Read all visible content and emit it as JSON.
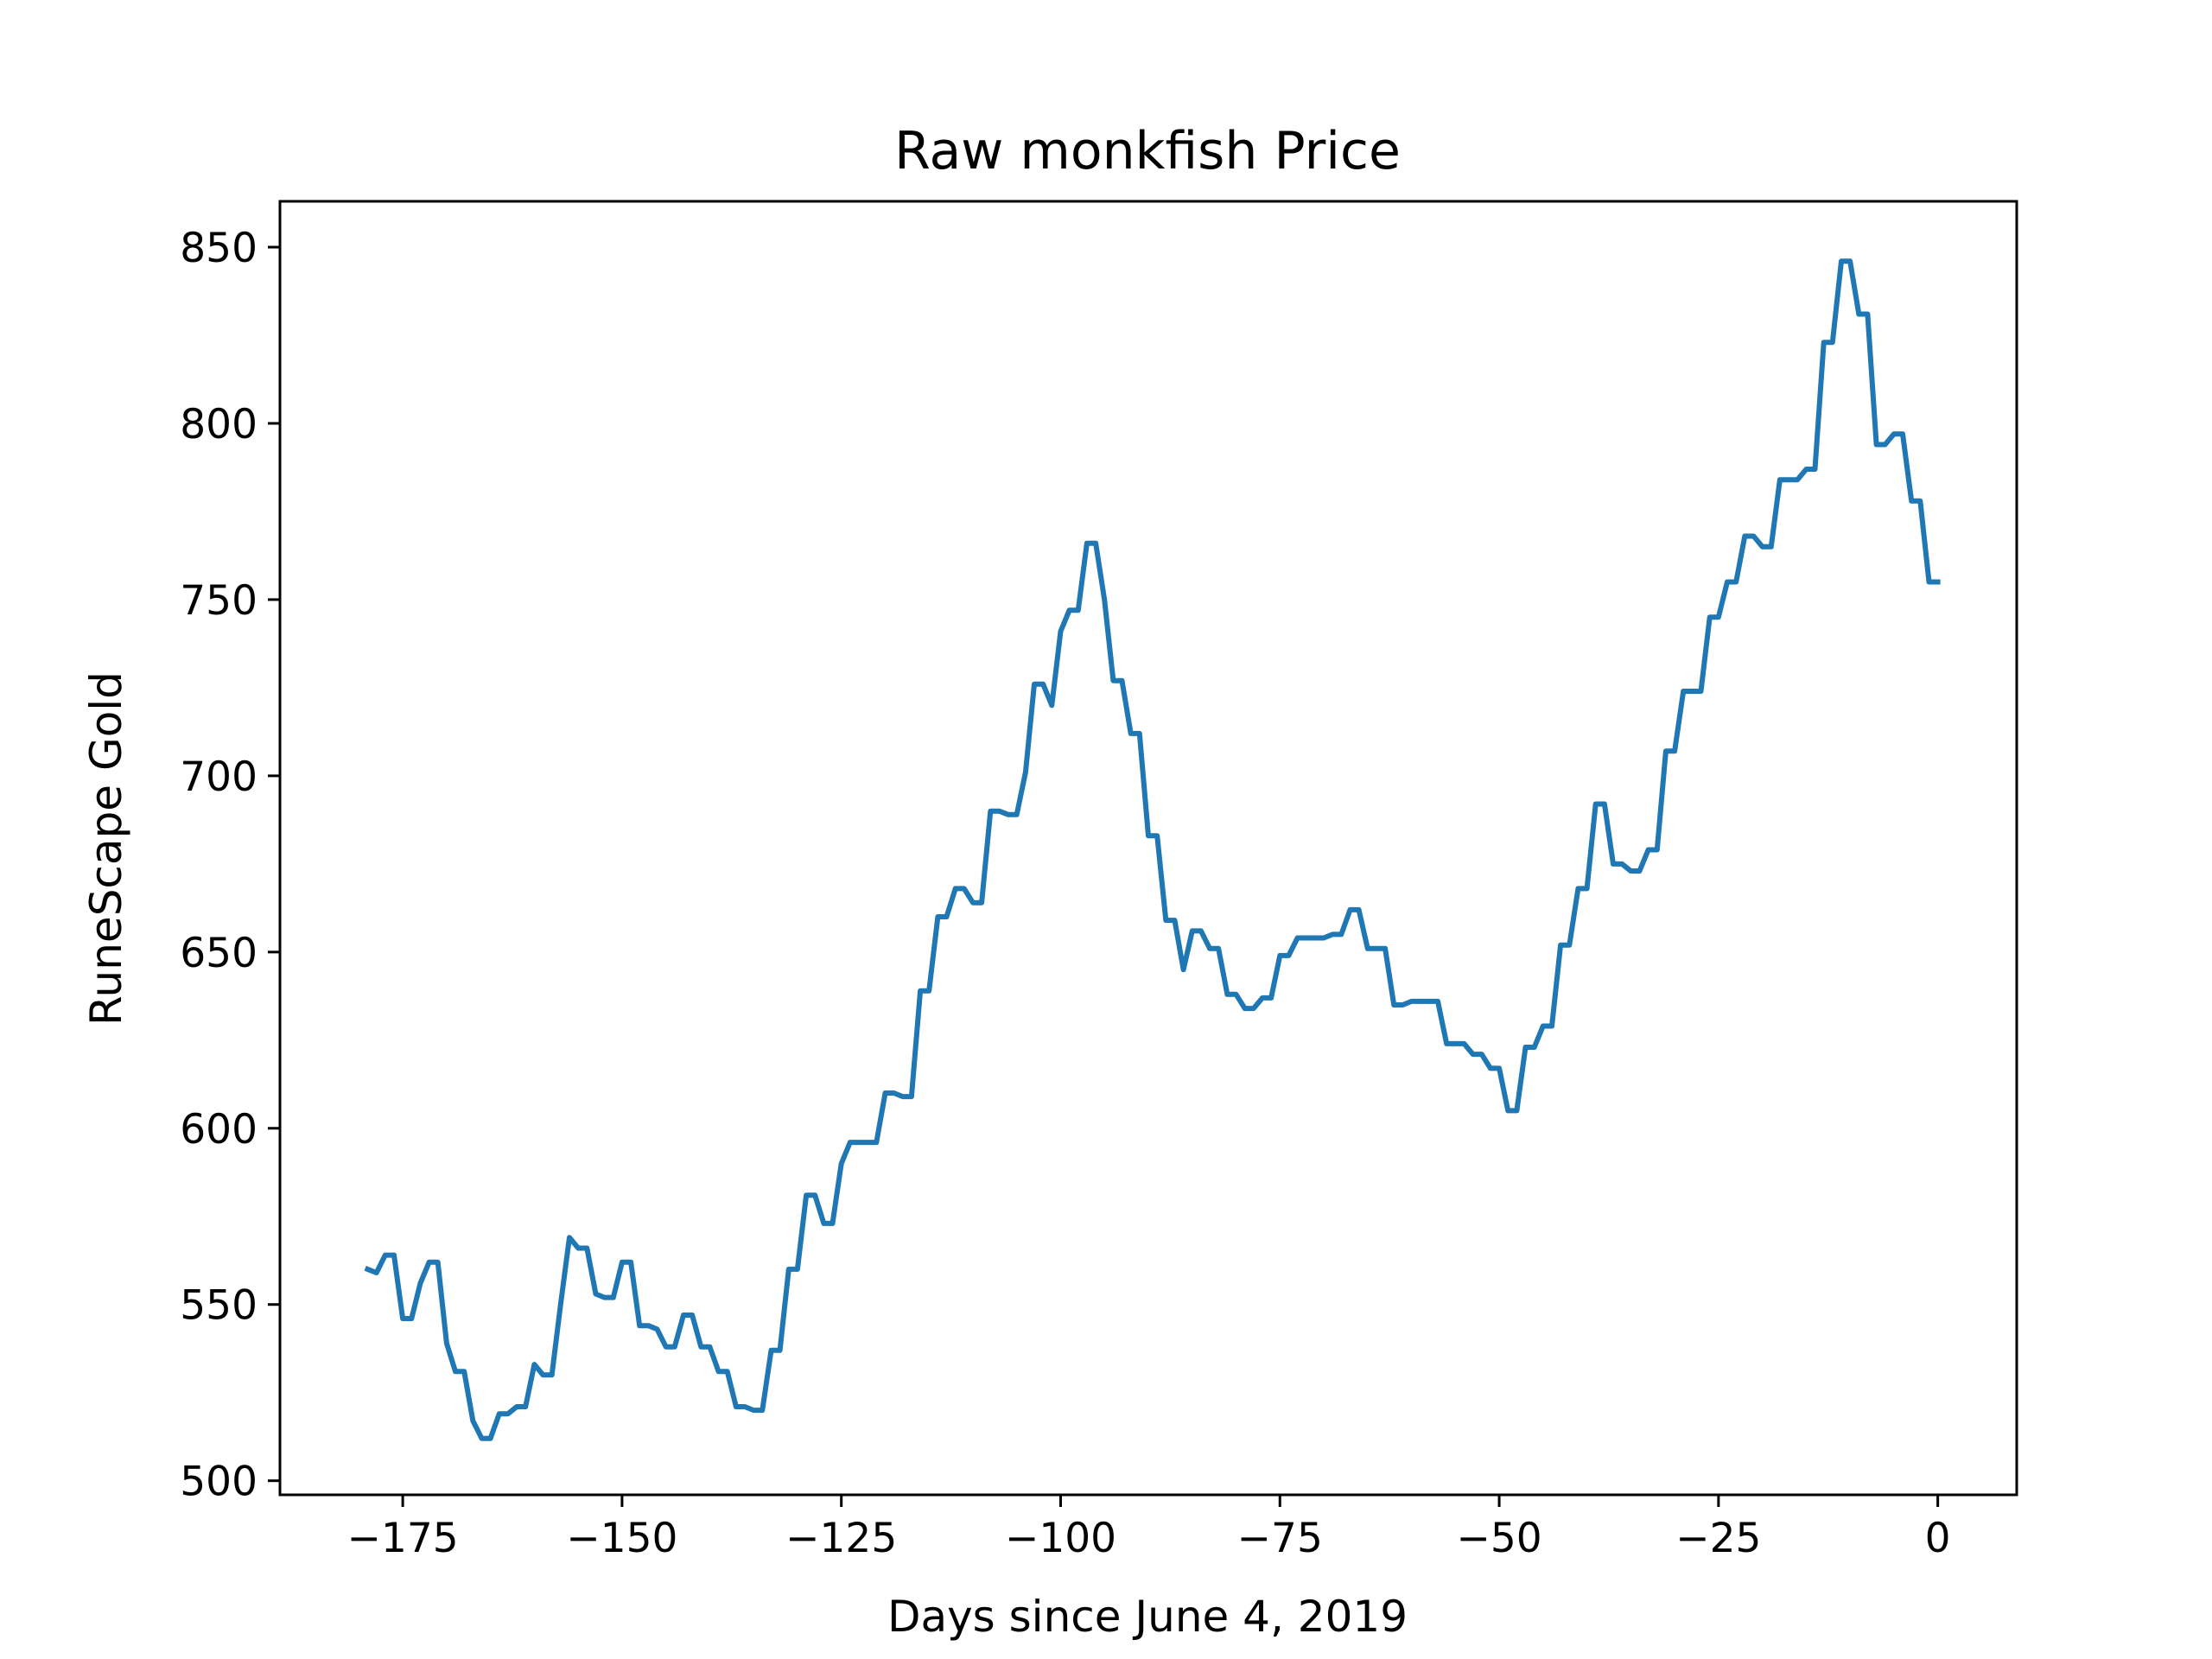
{
  "chart_data": {
    "type": "line",
    "title": "Raw monkfish Price",
    "xlabel": "Days since June 4, 2019",
    "ylabel": "RuneScape Gold",
    "xlim": [
      -189,
      9
    ],
    "ylim": [
      496,
      863
    ],
    "xticks": [
      -175,
      -150,
      -125,
      -100,
      -75,
      -50,
      -25,
      0
    ],
    "xtick_labels": [
      "−175",
      "−150",
      "−125",
      "−100",
      "−75",
      "−50",
      "−25",
      "0"
    ],
    "yticks": [
      500,
      550,
      600,
      650,
      700,
      750,
      800,
      850
    ],
    "ytick_labels": [
      "500",
      "550",
      "600",
      "650",
      "700",
      "750",
      "800",
      "850"
    ],
    "grid": false,
    "line_color": "#1f77b4",
    "series": [
      {
        "x": [
          -179,
          -178,
          -177,
          -176,
          -175,
          -174,
          -173,
          -172,
          -171,
          -170,
          -169,
          -168,
          -167,
          -166,
          -165,
          -164,
          -163,
          -162,
          -161,
          -160,
          -159,
          -158,
          -157,
          -156,
          -155,
          -154,
          -153,
          -152,
          -151,
          -150,
          -149,
          -148,
          -147,
          -146,
          -145,
          -144,
          -143,
          -142,
          -141,
          -140,
          -139,
          -138,
          -137,
          -136,
          -135,
          -134,
          -133,
          -132,
          -131,
          -130,
          -129,
          -128,
          -127,
          -126,
          -125,
          -124,
          -123,
          -122,
          -121,
          -120,
          -119,
          -118,
          -117,
          -116,
          -115,
          -114,
          -113,
          -112,
          -111,
          -110,
          -109,
          -108,
          -107,
          -106,
          -105,
          -104,
          -103,
          -102,
          -101,
          -100,
          -99,
          -98,
          -97,
          -96,
          -95,
          -94,
          -93,
          -92,
          -91,
          -90,
          -89,
          -88,
          -87,
          -86,
          -85,
          -84,
          -83,
          -82,
          -81,
          -80,
          -79,
          -78,
          -77,
          -76,
          -75,
          -74,
          -73,
          -72,
          -71,
          -70,
          -69,
          -68,
          -67,
          -66,
          -65,
          -64,
          -63,
          -62,
          -61,
          -60,
          -59,
          -58,
          -57,
          -56,
          -55,
          -54,
          -53,
          -52,
          -51,
          -50,
          -49,
          -48,
          -47,
          -46,
          -45,
          -44,
          -43,
          -42,
          -41,
          -40,
          -39,
          -38,
          -37,
          -36,
          -35,
          -34,
          -33,
          -32,
          -31,
          -30,
          -29,
          -28,
          -27,
          -26,
          -25,
          -24,
          -23,
          -22,
          -21,
          -20,
          -19,
          -18,
          -17,
          -16,
          -15,
          -14,
          -13,
          -12,
          -11,
          -10,
          -9,
          -8,
          -7,
          -6,
          -5,
          -4,
          -3,
          -2,
          -1,
          0
        ],
        "y": [
          560,
          559,
          564,
          564,
          546,
          546,
          556,
          562,
          562,
          539,
          531,
          531,
          517,
          512,
          512,
          519,
          519,
          521,
          521,
          533,
          530,
          530,
          550,
          569,
          566,
          566,
          553,
          552,
          552,
          562,
          562,
          544,
          544,
          543,
          538,
          538,
          547,
          547,
          538,
          538,
          531,
          531,
          521,
          521,
          520,
          520,
          537,
          537,
          560,
          560,
          581,
          581,
          573,
          573,
          590,
          596,
          596,
          596,
          596,
          610,
          610,
          609,
          609,
          639,
          639,
          660,
          660,
          668,
          668,
          664,
          664,
          690,
          690,
          689,
          689,
          701,
          726,
          726,
          720,
          741,
          747,
          747,
          766,
          766,
          750,
          727,
          727,
          712,
          712,
          683,
          683,
          659,
          659,
          645,
          656,
          656,
          651,
          651,
          638,
          638,
          634,
          634,
          637,
          637,
          649,
          649,
          654,
          654,
          654,
          654,
          655,
          655,
          662,
          662,
          651,
          651,
          651,
          635,
          635,
          636,
          636,
          636,
          636,
          624,
          624,
          624,
          621,
          621,
          617,
          617,
          605,
          605,
          623,
          623,
          629,
          629,
          652,
          652,
          668,
          668,
          692,
          692,
          675,
          675,
          673,
          673,
          679,
          679,
          707,
          707,
          724,
          724,
          724,
          745,
          745,
          755,
          755,
          768,
          768,
          765,
          765,
          784,
          784,
          784,
          787,
          787,
          823,
          823,
          846,
          846,
          831,
          831,
          794,
          794,
          797,
          797,
          778,
          778,
          755,
          755
        ]
      }
    ]
  }
}
